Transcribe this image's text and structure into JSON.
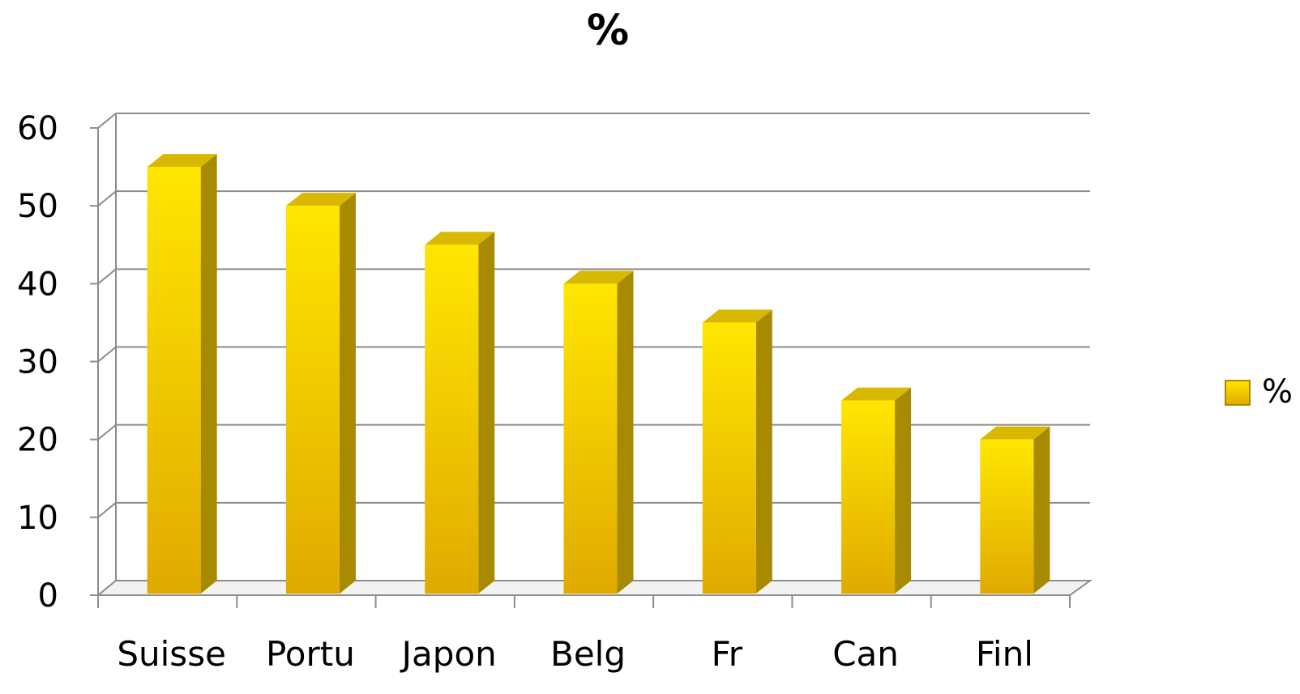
{
  "chart_data": {
    "type": "bar",
    "style": "3d-column",
    "title": "%",
    "xlabel": "",
    "ylabel": "",
    "categories": [
      "Suisse",
      "Portu",
      "Japon",
      "Belg",
      "Fr",
      "Can",
      "Finl"
    ],
    "series": [
      {
        "name": "%",
        "values": [
          55,
          50,
          45,
          40,
          35,
          25,
          20
        ]
      }
    ],
    "ylim": [
      0,
      60
    ],
    "yticks": [
      0,
      10,
      20,
      30,
      40,
      50,
      60
    ],
    "grid": true,
    "legend": "right",
    "colors": {
      "bar_front_top": "#FFE600",
      "bar_front_bottom": "#E0AA00",
      "bar_side": "#A88A00",
      "bar_top": "#D8B800",
      "gridline": "#8C8C8C",
      "axis": "#8C8C8C"
    }
  }
}
